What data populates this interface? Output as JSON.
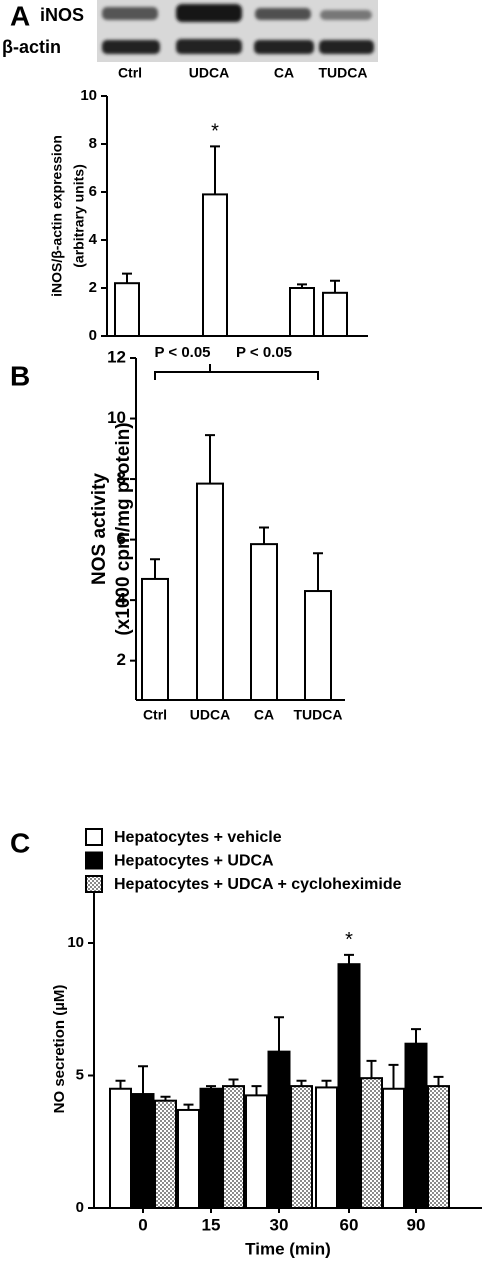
{
  "chart_data": [
    {
      "type": "bar",
      "panel": "A",
      "blot_rows": [
        "iNOS",
        "β-actin"
      ],
      "ylabel": [
        "iNOS/β-actin expression",
        "(arbitrary units)"
      ],
      "categories": [
        "Ctrl",
        "UDCA",
        "CA",
        "TUDCA"
      ],
      "series": [
        {
          "color": "#ffffff",
          "values": [
            2.2,
            5.9,
            2.0,
            1.8
          ],
          "errors": [
            0.4,
            2.0,
            0.15,
            0.5
          ]
        }
      ],
      "annotations": [
        "*"
      ],
      "ylim": [
        0,
        10
      ],
      "yticks": [
        0,
        2,
        4,
        6,
        8,
        10
      ]
    },
    {
      "type": "bar",
      "panel": "B",
      "ylabel": [
        "NOS activity",
        "(x1000 cpm/mg protein)"
      ],
      "categories": [
        "Ctrl",
        "UDCA",
        "CA",
        "TUDCA"
      ],
      "series": [
        {
          "color": "#ffffff",
          "values": [
            4.7,
            7.85,
            5.85,
            4.3
          ],
          "errors": [
            0.65,
            1.6,
            0.55,
            1.25
          ]
        }
      ],
      "annotations": [
        "P < 0.05",
        "P < 0.05"
      ],
      "ylim": [
        0.7,
        12
      ],
      "yticks": [
        2,
        4,
        6,
        8,
        10,
        12
      ]
    },
    {
      "type": "grouped-bar",
      "panel": "C",
      "ylabel": "NO secretion (µM)",
      "xlabel": "Time (min)",
      "categories": [
        "0",
        "15",
        "30",
        "60",
        "90"
      ],
      "series": [
        {
          "name": "Hepatocytes + vehicle",
          "color": "#ffffff",
          "values": [
            4.5,
            3.7,
            4.25,
            4.55,
            4.5
          ],
          "errors": [
            0.3,
            0.2,
            0.35,
            0.25,
            0.9
          ]
        },
        {
          "name": "Hepatocytes + UDCA",
          "color": "#000000",
          "values": [
            4.3,
            4.5,
            5.9,
            9.2,
            6.2
          ],
          "errors": [
            1.05,
            0.1,
            1.3,
            0.35,
            0.55
          ]
        },
        {
          "name": "Hepatocytes + UDCA + cycloheximide",
          "color": "#8a8a8a",
          "pattern": "checkered",
          "values": [
            4.05,
            4.6,
            4.6,
            4.9,
            4.6
          ],
          "errors": [
            0.15,
            0.25,
            0.2,
            0.65,
            0.35
          ]
        }
      ],
      "annotations": [
        "*"
      ],
      "ylim": [
        0,
        12
      ],
      "yticks": [
        0,
        5,
        10
      ]
    }
  ]
}
